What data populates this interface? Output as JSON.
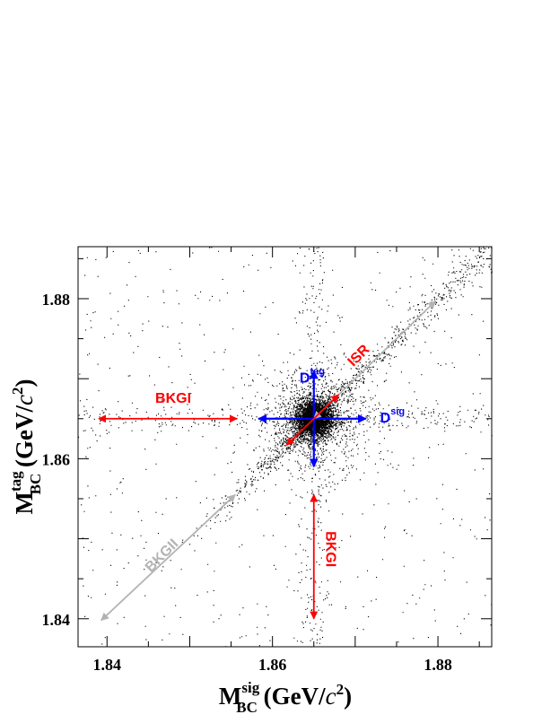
{
  "chart_data": {
    "type": "scatter",
    "xlim": [
      1.8365,
      1.8865
    ],
    "ylim": [
      1.8365,
      1.8865
    ],
    "x_ticks": [
      {
        "value": 1.84,
        "label": "1.84"
      },
      {
        "value": 1.86,
        "label": "1.86"
      },
      {
        "value": 1.88,
        "label": "1.88"
      }
    ],
    "y_ticks": [
      {
        "value": 1.84,
        "label": "1.84"
      },
      {
        "value": 1.86,
        "label": "1.86"
      },
      {
        "value": 1.88,
        "label": "1.88"
      }
    ],
    "xlabel": {
      "main": "M",
      "sup": "sig",
      "sub": "BC",
      "unit_open": " (GeV/",
      "unit_c": "c",
      "unit_exp": "2",
      "unit_close": ")"
    },
    "ylabel": {
      "main": "M",
      "sup": "tag",
      "sub": "BC",
      "unit_open": " (GeV/",
      "unit_c": "c",
      "unit_exp": "2",
      "unit_close": ")"
    },
    "signal_peak": [
      1.865,
      1.865
    ],
    "grid": false,
    "colors": {
      "red": "#ff0000",
      "blue": "#0000ff",
      "gray": "#b3b3b3",
      "points": "#000000"
    },
    "annotations": [
      {
        "name": "dtag",
        "kind": "label",
        "color": "blue",
        "at": [
          1.8648,
          1.8695
        ],
        "main": "D",
        "sup": "tag",
        "rotate": 0
      },
      {
        "name": "dsig",
        "kind": "label",
        "color": "blue",
        "at": [
          1.8745,
          1.8645
        ],
        "main": "D",
        "sup": "sig",
        "rotate": 0
      },
      {
        "name": "bkgi-horizontal",
        "kind": "label",
        "color": "red",
        "at": [
          1.848,
          1.867
        ],
        "main": "BKGI",
        "sup": "",
        "rotate": 0
      },
      {
        "name": "bkgi-vertical",
        "kind": "label",
        "color": "red",
        "at": [
          1.8665,
          1.8487
        ],
        "main": "BKGI",
        "sup": "",
        "rotate": 90
      },
      {
        "name": "isr",
        "kind": "label",
        "color": "red",
        "at": [
          1.8708,
          1.8725
        ],
        "main": "ISR",
        "sup": "",
        "rotate": -45
      },
      {
        "name": "bkgii",
        "kind": "label",
        "color": "gray",
        "at": [
          1.847,
          1.8475
        ],
        "main": "BKGII",
        "sup": "",
        "rotate": -45
      }
    ],
    "arrows": [
      {
        "name": "dsig-arrow",
        "color": "blue",
        "from": [
          1.8583,
          1.865
        ],
        "to": [
          1.8713,
          1.865
        ]
      },
      {
        "name": "dtag-arrow",
        "color": "blue",
        "from": [
          1.865,
          1.859
        ],
        "to": [
          1.865,
          1.871
        ]
      },
      {
        "name": "isr-long-arrow",
        "color": "gray",
        "from": [
          1.865,
          1.865
        ],
        "to": [
          1.8797,
          1.8797
        ]
      },
      {
        "name": "isr-red-arrow",
        "color": "red",
        "from": [
          1.8617,
          1.8617
        ],
        "to": [
          1.868,
          1.868
        ]
      },
      {
        "name": "bkgi-horizontal-arrow",
        "color": "red",
        "from": [
          1.839,
          1.865
        ],
        "to": [
          1.8557,
          1.865
        ]
      },
      {
        "name": "bkgi-vertical-arrow",
        "color": "red",
        "from": [
          1.865,
          1.84
        ],
        "to": [
          1.865,
          1.8555
        ]
      },
      {
        "name": "bkgii-arrow",
        "color": "gray",
        "from": [
          1.8393,
          1.8398
        ],
        "to": [
          1.8555,
          1.8555
        ]
      }
    ]
  }
}
